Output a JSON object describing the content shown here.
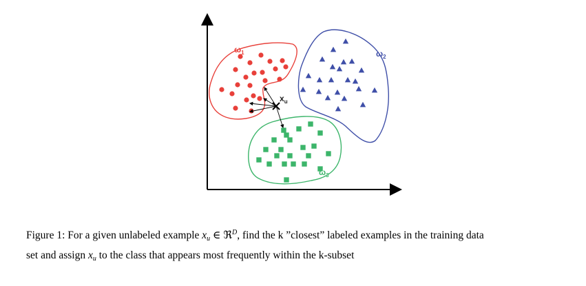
{
  "figure": {
    "clusters": [
      {
        "id": "omega1",
        "label_main": "ω",
        "label_sub": "1",
        "color": "#e8403a",
        "marker": "circle"
      },
      {
        "id": "omega2",
        "label_main": "ω",
        "label_sub": "2",
        "color": "#3f4fa8",
        "marker": "triangle"
      },
      {
        "id": "omega3",
        "label_main": "ω",
        "label_sub": "3",
        "color": "#3cb56a",
        "marker": "square"
      }
    ],
    "query": {
      "label_main": "x",
      "label_sub": "u",
      "color": "#222222"
    }
  },
  "caption": {
    "line1_prefix": "Figure 1: For a given unlabeled example ",
    "x": "x",
    "u": "u",
    "in_symbol": "∈",
    "reals": "ℜ",
    "dim": "D",
    "line1_suffix": ", find the k ”closest” labeled examples in the training data",
    "line2_prefix": "set and assign ",
    "line2_suffix": " to the class that appears most frequently within the k-subset"
  }
}
